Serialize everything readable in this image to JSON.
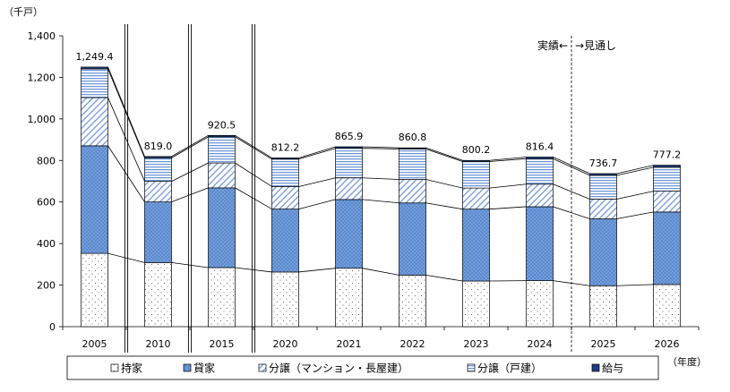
{
  "chart_data": {
    "type": "bar",
    "stacked": true,
    "unit_label": "（千戸）",
    "x_unit_label": "（年度）",
    "categories": [
      "2005",
      "2010",
      "2015",
      "2020",
      "2021",
      "2022",
      "2023",
      "2024",
      "2025",
      "2026"
    ],
    "series": [
      {
        "name": "持家",
        "color": "#ffffff",
        "values": [
          352.6,
          308.5,
          284.4,
          263.1,
          281.3,
          248.1,
          219.6,
          221.4,
          197.0,
          203.0
        ]
      },
      {
        "name": "貸家",
        "color": "#5b8bd0",
        "values": [
          518.0,
          291.8,
          383.7,
          303.0,
          330.8,
          347.4,
          346.1,
          356.0,
          322.0,
          349.0
        ]
      },
      {
        "name": "分譲（マンション・長屋建）",
        "color": "#7c9fd8",
        "values": [
          232.0,
          99.3,
          119.7,
          108.2,
          104.0,
          113.0,
          101.4,
          108.5,
          95.0,
          100.0
        ]
      },
      {
        "name": "分譲（戸建）",
        "color": "#6f98d6",
        "values": [
          138.0,
          112.8,
          125.9,
          132.1,
          142.4,
          146.5,
          127.8,
          122.5,
          114.0,
          115.2
        ]
      },
      {
        "name": "給与",
        "color": "#1f3f7f",
        "values": [
          8.8,
          6.6,
          6.8,
          5.8,
          7.4,
          5.8,
          5.3,
          8.0,
          8.7,
          10.0
        ]
      }
    ],
    "total_labels": [
      "1,249.4",
      "819.0",
      "920.5",
      "812.2",
      "865.9",
      "860.8",
      "800.2",
      "816.4",
      "736.7",
      "777.2"
    ],
    "ylim": [
      0,
      1400
    ],
    "yticks": [
      0,
      200,
      400,
      600,
      800,
      1000,
      1200,
      1400
    ],
    "ytick_labels": [
      "0",
      "200",
      "400",
      "600",
      "800",
      "1,000",
      "1,200",
      "1,400"
    ],
    "grid": false,
    "legend_placement": "bottom",
    "axis_break_after_indices": [
      0,
      1,
      2
    ],
    "forecast_start_index": 8,
    "actual_label": "実績←",
    "forecast_label": "→見通し"
  }
}
